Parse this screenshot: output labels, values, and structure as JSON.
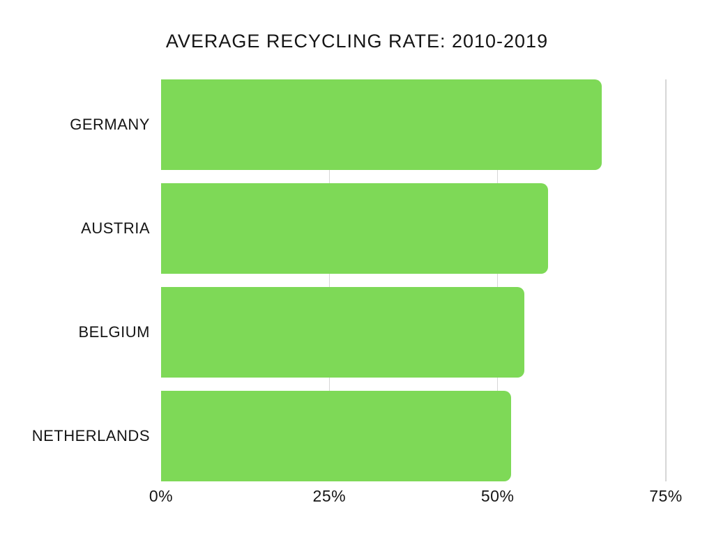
{
  "chart_data": {
    "type": "bar",
    "orientation": "horizontal",
    "title": "AVERAGE RECYCLING RATE: 2010-2019",
    "categories": [
      "GERMANY",
      "AUSTRIA",
      "BELGIUM",
      "NETHERLANDS"
    ],
    "values": [
      65.5,
      57.5,
      54,
      52
    ],
    "unit": "%",
    "xlabel": "",
    "ylabel": "",
    "xlim": [
      0,
      75
    ],
    "xtick_labels": [
      "0%",
      "25%",
      "50%",
      "75%"
    ],
    "xtick_values": [
      0,
      25,
      50,
      75
    ],
    "gridline_values": [
      25,
      50,
      75
    ],
    "grid": "vertical-lines-at-ticks",
    "legend": "none",
    "data_labels": "none",
    "bar_color": "#7ed957",
    "gridline_color": "#d6d6d6",
    "text_color": "#151515",
    "background_color": "#ffffff"
  }
}
